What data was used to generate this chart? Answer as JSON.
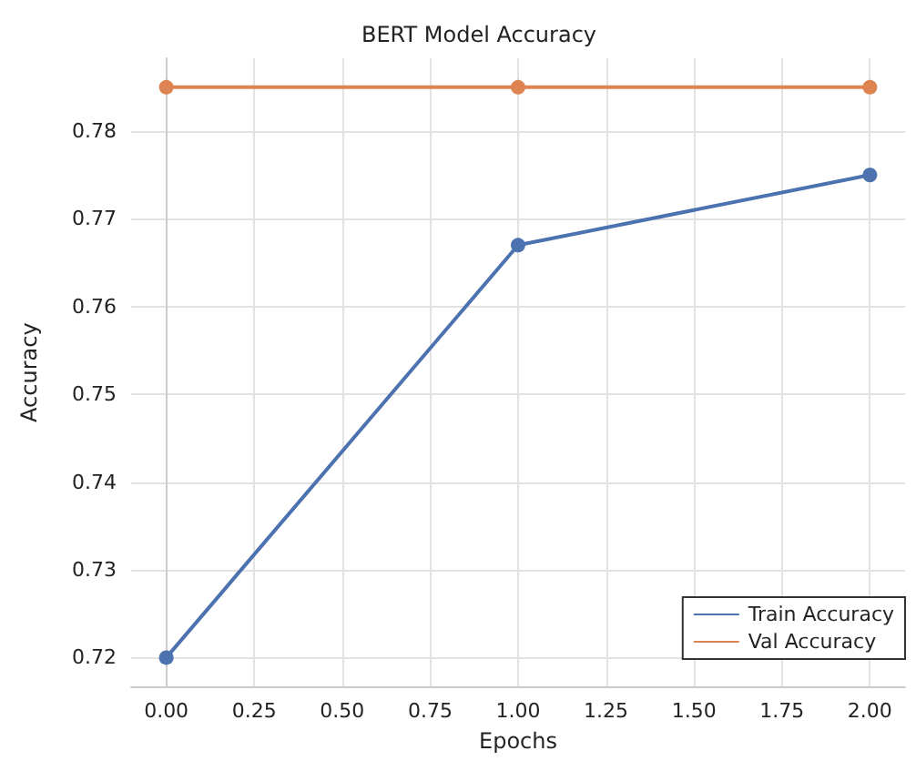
{
  "chart_data": {
    "type": "line",
    "title": "BERT Model Accuracy",
    "xlabel": "Epochs",
    "ylabel": "Accuracy",
    "x": [
      0,
      1,
      2
    ],
    "series": [
      {
        "name": "Train Accuracy",
        "color": "#4c72b0",
        "values": [
          0.72,
          0.767,
          0.775
        ]
      },
      {
        "name": "Val Accuracy",
        "color": "#dd8452",
        "values": [
          0.785,
          0.785,
          0.785
        ]
      }
    ],
    "xlim": [
      -0.1,
      2.1
    ],
    "xticks": [
      {
        "value": 0,
        "label": "0.00"
      },
      {
        "value": 0.25,
        "label": "0.25"
      },
      {
        "value": 0.5,
        "label": "0.50"
      },
      {
        "value": 0.75,
        "label": "0.75"
      },
      {
        "value": 1,
        "label": "1.00"
      },
      {
        "value": 1.25,
        "label": "1.25"
      },
      {
        "value": 1.5,
        "label": "1.50"
      },
      {
        "value": 1.75,
        "label": "1.75"
      },
      {
        "value": 2,
        "label": "2.00"
      }
    ],
    "ylim": [
      0.7167,
      0.7883
    ],
    "yticks": [
      0.72,
      0.73,
      0.74,
      0.75,
      0.76,
      0.77,
      0.78
    ],
    "grid": true,
    "legend": "bottom right",
    "marker": "circle",
    "line_style": "solid"
  }
}
